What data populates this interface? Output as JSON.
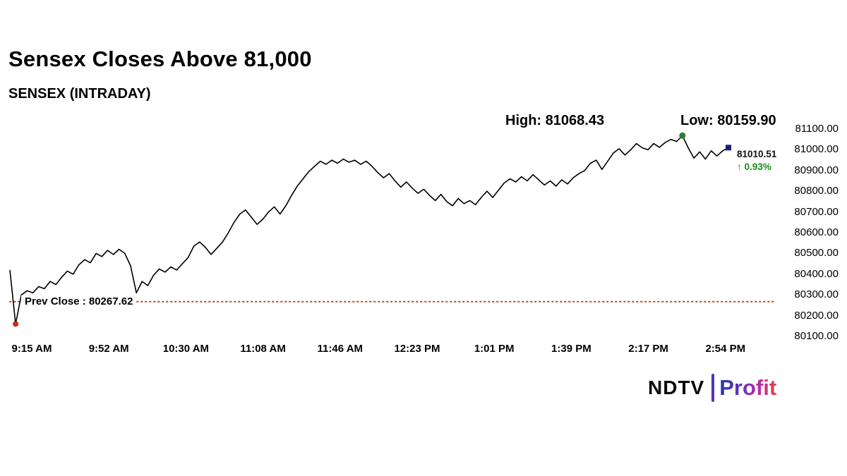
{
  "header": {
    "title": "Sensex Closes Above 81,000",
    "subtitle": "SENSEX (INTRADAY)",
    "high_label": "High: 81068.43",
    "low_label": "Low: 80159.90"
  },
  "chart_data": {
    "type": "line",
    "title": "SENSEX (INTRADAY)",
    "symbol": "SENSEX",
    "session": "INTRADAY",
    "x_tick_labels": [
      "9:15 AM",
      "9:52 AM",
      "10:30 AM",
      "11:08 AM",
      "11:46 AM",
      "12:23 PM",
      "1:01 PM",
      "1:39 PM",
      "2:17 PM",
      "2:54 PM"
    ],
    "y_tick_labels": [
      "81100.00",
      "81000.00",
      "80900.00",
      "80800.00",
      "80700.00",
      "80600.00",
      "80500.00",
      "80400.00",
      "80300.00",
      "80200.00",
      "80100.00"
    ],
    "ylim": [
      80100,
      81100
    ],
    "high": 81068.43,
    "low": 80159.9,
    "last_price": 81010.51,
    "last_price_label": "81010.51",
    "change_percent": 0.93,
    "change_direction": "up",
    "change_label": "↑ 0.93%",
    "prev_close": 80267.62,
    "prev_close_label": "Prev Close : 80267.62",
    "grid": false,
    "legend": false,
    "series": [
      {
        "name": "SENSEX",
        "values": [
          80420,
          80159.9,
          80300,
          80320,
          80310,
          80340,
          80330,
          80365,
          80350,
          80385,
          80415,
          80400,
          80445,
          80470,
          80455,
          80500,
          80485,
          80515,
          80495,
          80520,
          80500,
          80440,
          80310,
          80365,
          80345,
          80395,
          80425,
          80410,
          80435,
          80420,
          80450,
          80480,
          80535,
          80555,
          80530,
          80495,
          80525,
          80555,
          80600,
          80650,
          80690,
          80710,
          80675,
          80640,
          80665,
          80700,
          80725,
          80690,
          80730,
          80780,
          80825,
          80860,
          80895,
          80920,
          80945,
          80930,
          80950,
          80935,
          80955,
          80940,
          80950,
          80930,
          80945,
          80920,
          80890,
          80865,
          80885,
          80850,
          80820,
          80845,
          80815,
          80790,
          80810,
          80780,
          80755,
          80785,
          80750,
          80730,
          80765,
          80740,
          80755,
          80735,
          80770,
          80800,
          80770,
          80805,
          80840,
          80860,
          80845,
          80870,
          80850,
          80880,
          80855,
          80830,
          80850,
          80825,
          80855,
          80835,
          80865,
          80885,
          80900,
          80935,
          80950,
          80905,
          80945,
          80985,
          81005,
          80975,
          81000,
          81030,
          81010,
          81000,
          81030,
          81012,
          81035,
          81050,
          81040,
          81068.43,
          81010,
          80960,
          80990,
          80955,
          80995,
          80970,
          80995,
          81010.51
        ]
      }
    ],
    "colors": {
      "line": "#000000",
      "prev_close_line": "#b5451f",
      "low_marker": "#cc2a12",
      "high_marker": "#2e7d32",
      "last_marker": "#1d1d7a",
      "change_text": "#1a9018"
    }
  },
  "branding": {
    "ndtv": "NDTV",
    "profit": "Profit"
  }
}
